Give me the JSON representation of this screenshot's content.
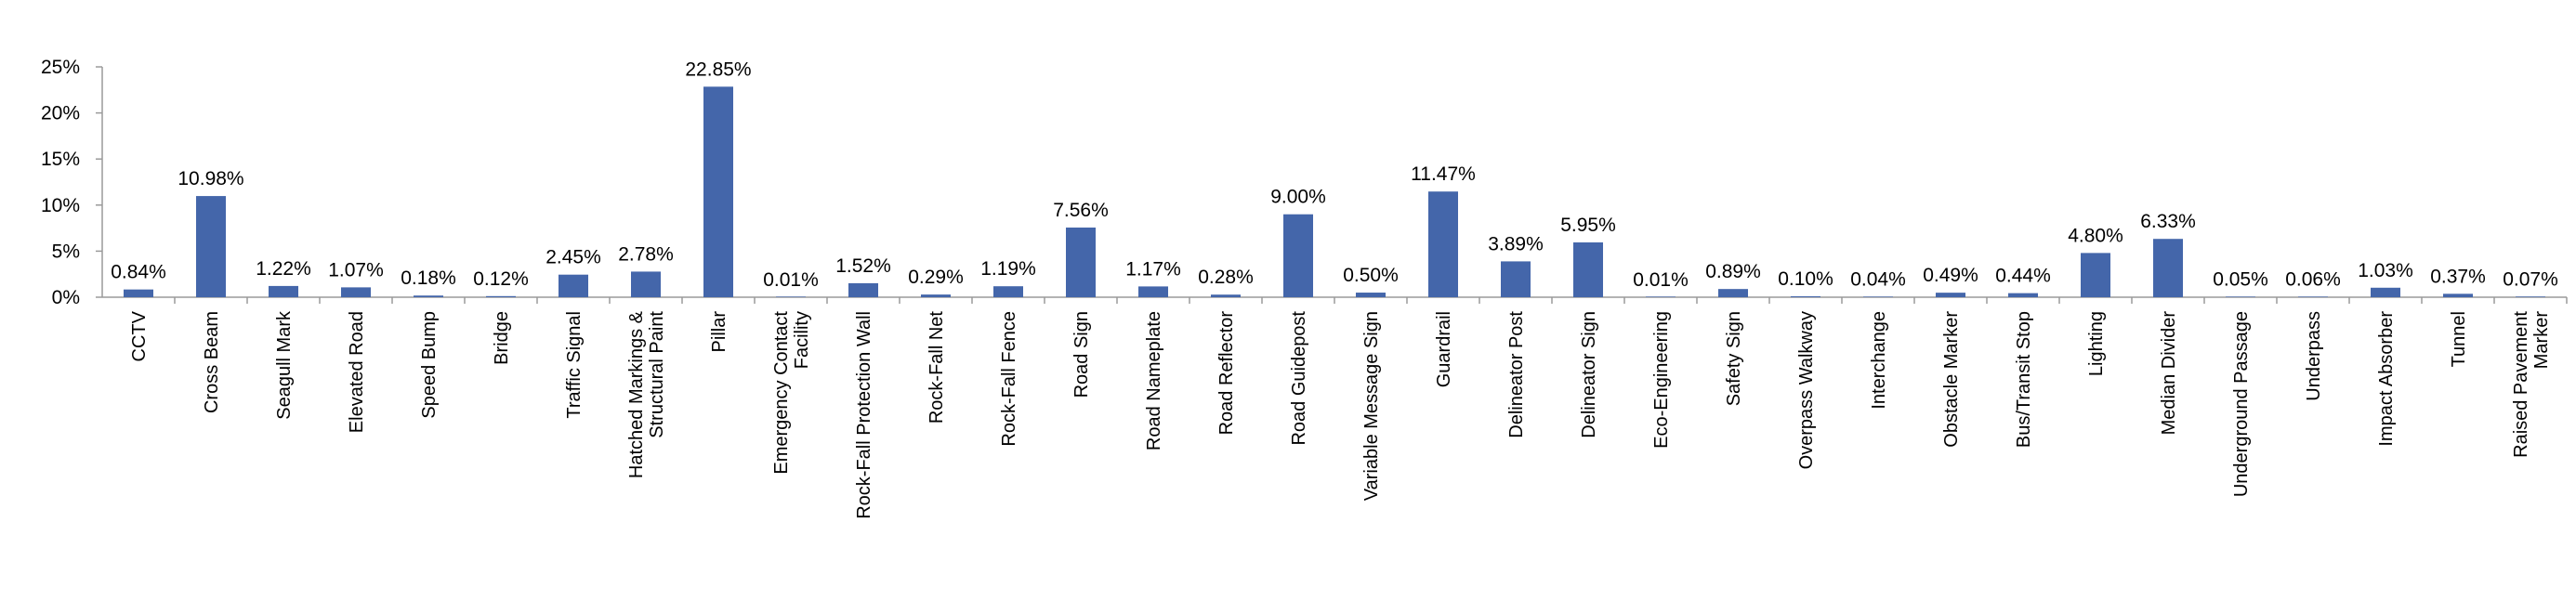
{
  "chart_data": {
    "type": "bar",
    "title": "",
    "xlabel": "",
    "ylabel": "",
    "ylim": [
      0,
      25
    ],
    "yticks": [
      "0%",
      "5%",
      "10%",
      "15%",
      "20%",
      "25%"
    ],
    "grid": false,
    "legend": "none",
    "bar_color": "#4466AA",
    "axis_color": "#9a9a9a",
    "categories": [
      "CCTV",
      "Cross Beam",
      "Seagull Mark",
      "Elevated Road",
      "Speed Bump",
      "Bridge",
      "Traffic Signal",
      "Hatched Markings & Structural Paint",
      "Pillar",
      "Emergency Contact Facility",
      "Rock-Fall Protection Wall",
      "Rock-Fall Net",
      "Rock-Fall Fence",
      "Road Sign",
      "Road Nameplate",
      "Road Reflector",
      "Road Guidepost",
      "Variable Message Sign",
      "Guardrail",
      "Delineator Post",
      "Delineator Sign",
      "Eco-Engineering",
      "Safety Sign",
      "Overpass Walkway",
      "Interchange",
      "Obstacle Marker",
      "Bus/Transit Stop",
      "Lighting",
      "Median Divider",
      "Underground Passage",
      "Underpass",
      "Impact Absorber",
      "Tunnel",
      "Raised Pavement Marker"
    ],
    "category_lines": [
      [
        "CCTV"
      ],
      [
        "Cross Beam"
      ],
      [
        "Seagull Mark"
      ],
      [
        "Elevated Road"
      ],
      [
        "Speed Bump"
      ],
      [
        "Bridge"
      ],
      [
        "Traffic Signal"
      ],
      [
        "Hatched Markings &",
        "Structural Paint"
      ],
      [
        "Pillar"
      ],
      [
        "Emergency Contact",
        "Facility"
      ],
      [
        "Rock-Fall Protection Wall"
      ],
      [
        "Rock-Fall Net"
      ],
      [
        "Rock-Fall Fence"
      ],
      [
        "Road Sign"
      ],
      [
        "Road Nameplate"
      ],
      [
        "Road Reflector"
      ],
      [
        "Road Guidepost"
      ],
      [
        "Variable Message Sign"
      ],
      [
        "Guardrail"
      ],
      [
        "Delineator Post"
      ],
      [
        "Delineator Sign"
      ],
      [
        "Eco-Engineering"
      ],
      [
        "Safety Sign"
      ],
      [
        "Overpass Walkway"
      ],
      [
        "Interchange"
      ],
      [
        "Obstacle Marker"
      ],
      [
        "Bus/Transit Stop"
      ],
      [
        "Lighting"
      ],
      [
        "Median Divider"
      ],
      [
        "Underground Passage"
      ],
      [
        "Underpass"
      ],
      [
        "Impact Absorber"
      ],
      [
        "Tunnel"
      ],
      [
        "Raised Pavement",
        "Marker"
      ]
    ],
    "values": [
      0.84,
      10.98,
      1.22,
      1.07,
      0.18,
      0.12,
      2.45,
      2.78,
      22.85,
      0.01,
      1.52,
      0.29,
      1.19,
      7.56,
      1.17,
      0.28,
      9.0,
      0.5,
      11.47,
      3.89,
      5.95,
      0.01,
      0.89,
      0.1,
      0.04,
      0.49,
      0.44,
      4.8,
      6.33,
      0.05,
      0.06,
      1.03,
      0.37,
      0.07
    ],
    "data_labels": [
      "0.84%",
      "10.98%",
      "1.22%",
      "1.07%",
      "0.18%",
      "0.12%",
      "2.45%",
      "2.78%",
      "22.85%",
      "0.01%",
      "1.52%",
      "0.29%",
      "1.19%",
      "7.56%",
      "1.17%",
      "0.28%",
      "9.00%",
      "0.50%",
      "11.47%",
      "3.89%",
      "5.95%",
      "0.01%",
      "0.89%",
      "0.10%",
      "0.04%",
      "0.49%",
      "0.44%",
      "4.80%",
      "6.33%",
      "0.05%",
      "0.06%",
      "1.03%",
      "0.37%",
      "0.07%"
    ]
  }
}
